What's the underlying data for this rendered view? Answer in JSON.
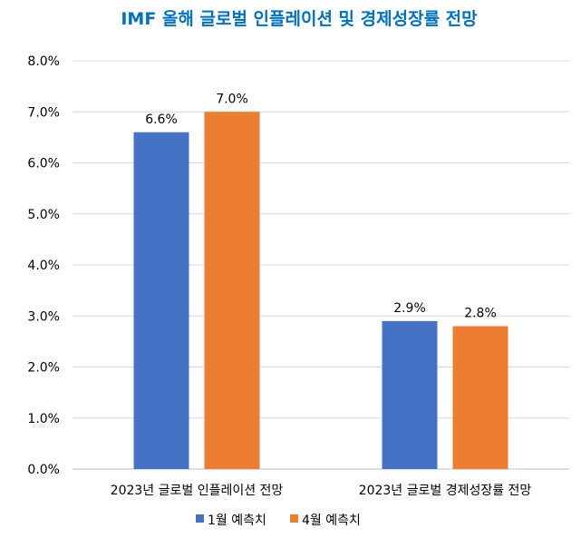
{
  "chart_data": {
    "type": "bar",
    "title": "IMF 올해 글로벌 인플레이션 및 경제성장률 전망",
    "title_color": "#0070c0",
    "categories": [
      "2023년 글로벌 인플레이션 전망",
      "2023년 글로벌 경제성장률 전망"
    ],
    "series": [
      {
        "name": "1월 예측치",
        "color": "#4472c4",
        "values": [
          6.6,
          2.9
        ],
        "labels": [
          "6.6%",
          "2.9%"
        ]
      },
      {
        "name": "4월 예측치",
        "color": "#ed7d31",
        "values": [
          7.0,
          2.8
        ],
        "labels": [
          "7.0%",
          "2.8%"
        ]
      }
    ],
    "ylim": [
      0,
      8
    ],
    "yticks": [
      "0.0%",
      "1.0%",
      "2.0%",
      "3.0%",
      "4.0%",
      "5.0%",
      "6.0%",
      "7.0%",
      "8.0%"
    ],
    "grid": true,
    "legend_position": "bottom"
  }
}
